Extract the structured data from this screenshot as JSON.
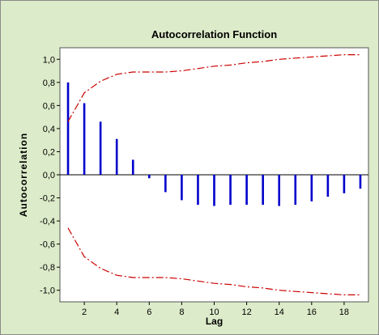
{
  "chart_data": {
    "type": "bar",
    "title": "Autocorrelation Function",
    "xlabel": "Lag",
    "ylabel": "Autocorrelation",
    "xlim": [
      0.5,
      19.5
    ],
    "ylim": [
      -1.1,
      1.1
    ],
    "x_ticks": [
      2,
      4,
      6,
      8,
      10,
      12,
      14,
      16,
      18
    ],
    "y_ticks": [
      -1.0,
      -0.8,
      -0.6,
      -0.4,
      -0.2,
      0.0,
      0.2,
      0.4,
      0.6,
      0.8,
      1.0
    ],
    "y_tick_labels": [
      "-1,0",
      "-0,8",
      "-0,6",
      "-0,4",
      "-0,2",
      "0,0",
      "0,2",
      "0,4",
      "0,6",
      "0,8",
      "1,0"
    ],
    "grid": false,
    "series": [
      {
        "type": "bar",
        "color": "#0000cc",
        "lags": [
          1,
          2,
          3,
          4,
          5,
          6,
          7,
          8,
          9,
          10,
          11,
          12,
          13,
          14,
          15,
          16,
          17,
          18,
          19
        ],
        "values": [
          0.8,
          0.62,
          0.46,
          0.31,
          0.13,
          -0.03,
          -0.15,
          -0.22,
          -0.26,
          -0.27,
          -0.26,
          -0.26,
          -0.26,
          -0.27,
          -0.26,
          -0.23,
          -0.19,
          -0.16,
          -0.12
        ]
      },
      {
        "type": "line",
        "style": "dash-dot",
        "color": "#cc0000",
        "x": [
          1,
          2,
          3,
          4,
          5,
          6,
          7,
          8,
          9,
          10,
          11,
          12,
          13,
          14,
          15,
          16,
          17,
          18,
          19
        ],
        "upper": [
          0.46,
          0.71,
          0.81,
          0.87,
          0.89,
          0.89,
          0.89,
          0.9,
          0.92,
          0.94,
          0.95,
          0.97,
          0.98,
          1.0,
          1.01,
          1.02,
          1.03,
          1.04,
          1.04
        ],
        "lower": [
          -0.46,
          -0.71,
          -0.81,
          -0.87,
          -0.89,
          -0.89,
          -0.89,
          -0.9,
          -0.92,
          -0.94,
          -0.95,
          -0.97,
          -0.98,
          -1.0,
          -1.01,
          -1.02,
          -1.03,
          -1.04,
          -1.04
        ]
      }
    ]
  }
}
